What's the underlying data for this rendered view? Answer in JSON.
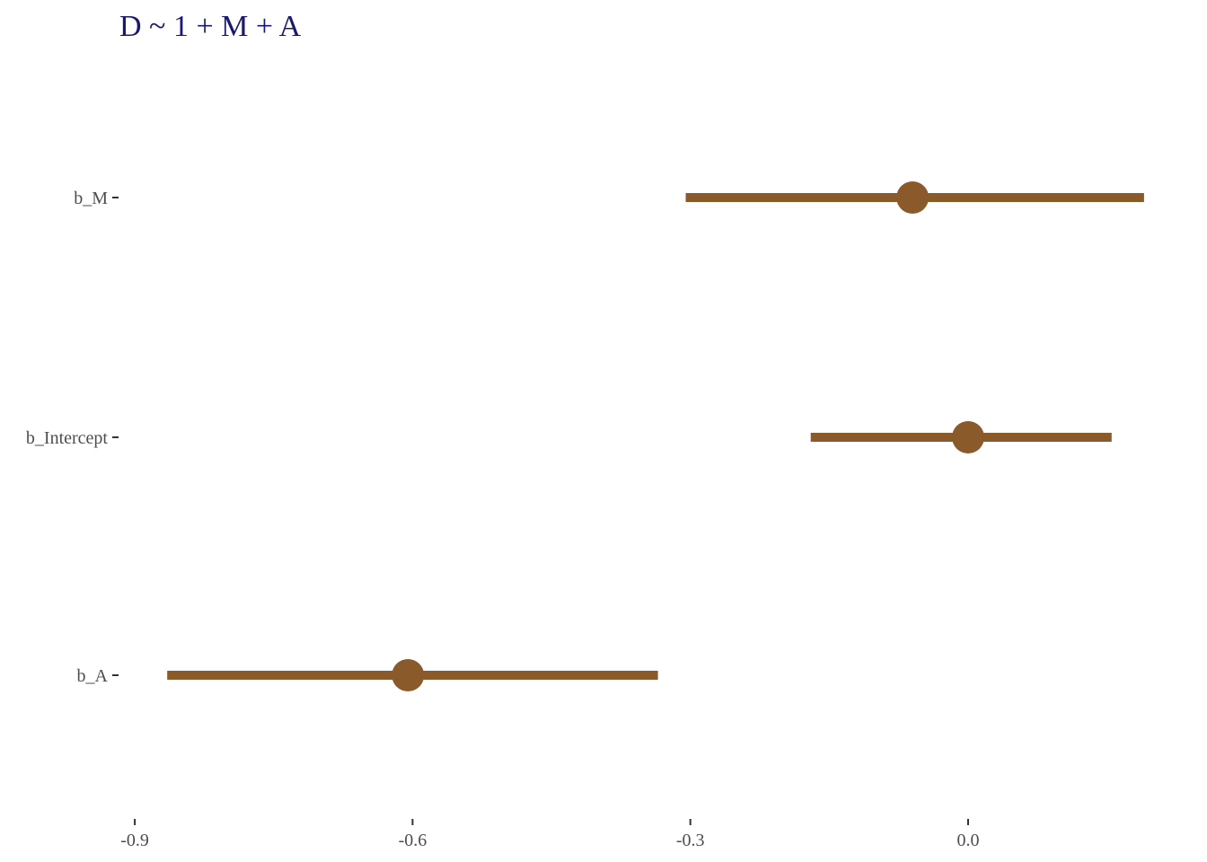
{
  "chart_data": {
    "type": "pointrange",
    "title": "D ~ 1 + M + A",
    "xlabel": "",
    "ylabel": "",
    "xlim": [
      -0.93,
      0.2
    ],
    "x_ticks": [
      "-0.9",
      "-0.6",
      "-0.3",
      "0.0"
    ],
    "x_tick_values": [
      -0.9,
      -0.6,
      -0.3,
      0.0
    ],
    "grid": false,
    "legend": "none",
    "categories": [
      "b_M",
      "b_Intercept",
      "b_A"
    ],
    "series": [
      {
        "estimate": [
          -0.06,
          0.0,
          -0.605
        ],
        "lower": [
          -0.305,
          -0.17,
          -0.865
        ],
        "upper": [
          0.19,
          0.155,
          -0.335
        ]
      }
    ],
    "colors": {
      "title": "#191970",
      "point": "#8b5a2b",
      "tick": "#333333"
    }
  }
}
